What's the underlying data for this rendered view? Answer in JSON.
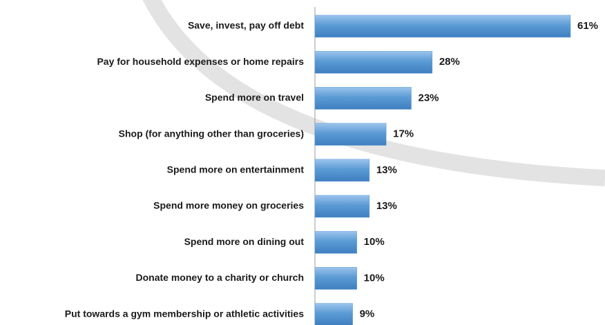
{
  "chart_data": {
    "type": "bar",
    "orientation": "horizontal",
    "categories": [
      "Save, invest, pay off debt",
      "Pay for household expenses or home repairs",
      "Spend more on travel",
      "Shop (for anything other than groceries)",
      "Spend more on entertainment",
      "Spend more money on groceries",
      "Spend more on dining out",
      "Donate money to a charity or church",
      "Put towards a gym membership or athletic activities"
    ],
    "values": [
      61,
      28,
      23,
      17,
      13,
      13,
      10,
      10,
      9
    ],
    "value_labels": [
      "61%",
      "28%",
      "23%",
      "17%",
      "13%",
      "13%",
      "10%",
      "10%",
      "9%"
    ],
    "color": "#5b9bd5"
  }
}
